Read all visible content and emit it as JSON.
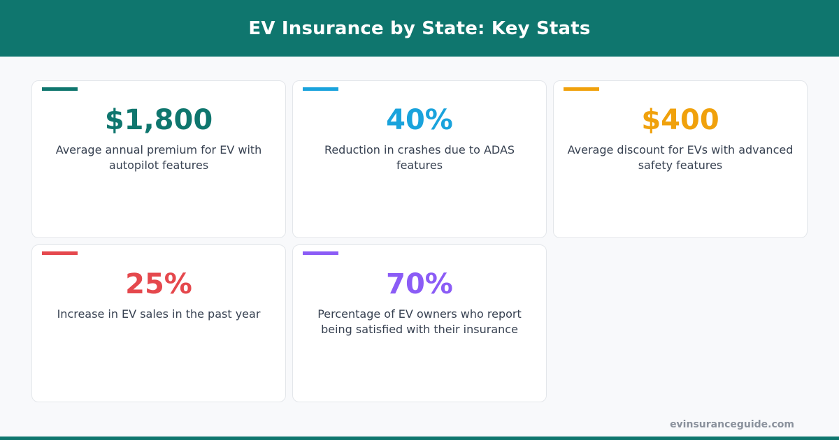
{
  "header": {
    "title": "EV Insurance by State: Key Stats"
  },
  "stats": [
    {
      "value": "$1,800",
      "description": "Average annual premium for EV with autopilot features",
      "color": "#0f766e"
    },
    {
      "value": "40%",
      "description": "Reduction in crashes due to ADAS features",
      "color": "#1aa3dc"
    },
    {
      "value": "$400",
      "description": "Average discount for EVs with advanced safety features",
      "color": "#f0a10c"
    },
    {
      "value": "25%",
      "description": "Increase in EV sales in the past year",
      "color": "#e5484d"
    },
    {
      "value": "70%",
      "description": "Percentage of EV owners who report being satisfied with their insurance",
      "color": "#8b5cf6"
    }
  ],
  "footer": {
    "url": "evinsuranceguide.com"
  },
  "colors": {
    "brand": "#0f766e",
    "background": "#f8f9fb",
    "card_border": "#e3e6ea",
    "text": "#374151"
  }
}
